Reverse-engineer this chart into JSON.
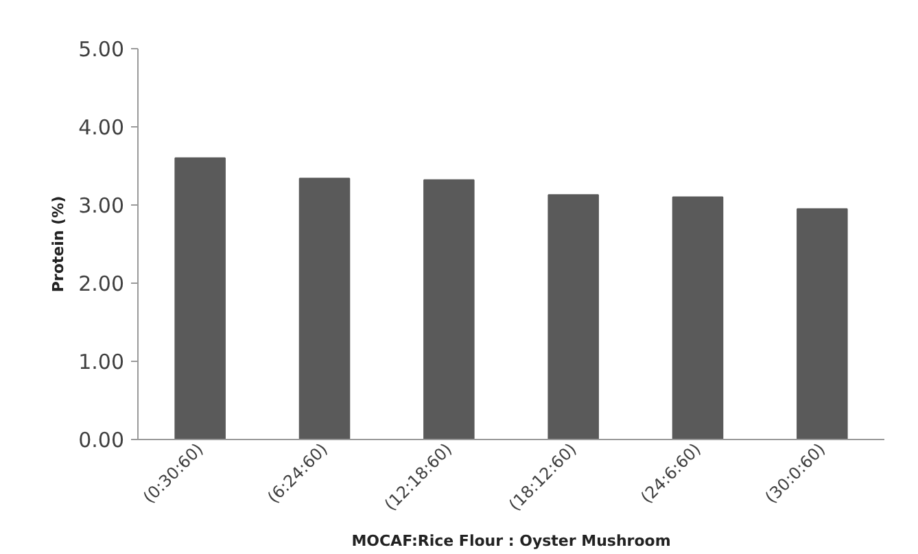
{
  "chart_data": {
    "type": "bar",
    "categories": [
      "(0:30:60)",
      "(6:24:60)",
      "(12:18:60)",
      "(18:12:60)",
      "(24:6:60)",
      "(30:0:60)"
    ],
    "values": [
      3.6,
      3.34,
      3.32,
      3.13,
      3.1,
      2.95
    ],
    "color": "#5a5a5a",
    "xlabel": "MOCAF:Rice Flour : Oyster Mushroom",
    "ylabel": "Protein (%)",
    "ylim": [
      0,
      5
    ],
    "yticks": [
      {
        "value": 0,
        "label": "0.00"
      },
      {
        "value": 1,
        "label": "1.00"
      },
      {
        "value": 2,
        "label": "2.00"
      },
      {
        "value": 3,
        "label": "3.00"
      },
      {
        "value": 4,
        "label": "4.00"
      },
      {
        "value": 5,
        "label": "5.00"
      }
    ],
    "grid": false
  }
}
